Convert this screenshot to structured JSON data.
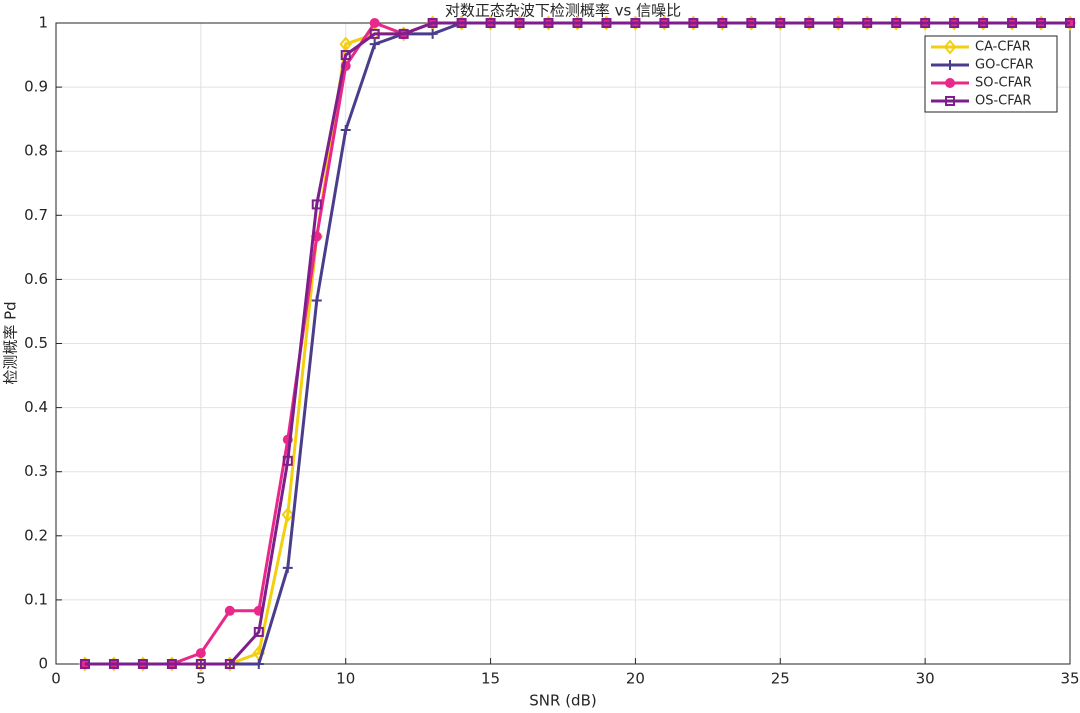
{
  "chart_data": {
    "type": "line",
    "title": "对数正态杂波下检测概率 vs 信噪比",
    "x_label": "SNR (dB)",
    "y_label": "检测概率 Pd",
    "x": [
      1,
      2,
      3,
      4,
      5,
      6,
      7,
      8,
      9,
      10,
      11,
      12,
      13,
      14,
      15,
      16,
      17,
      18,
      19,
      20,
      21,
      22,
      23,
      24,
      25,
      26,
      27,
      28,
      29,
      30,
      31,
      32,
      33,
      34,
      35
    ],
    "series": [
      {
        "name": "CA-CFAR",
        "color": "#f2cf0f",
        "marker": "diamond",
        "values": [
          0,
          0,
          0,
          0,
          0,
          0,
          0.017,
          0.233,
          0.667,
          0.967,
          0.983,
          0.983,
          1,
          1,
          1,
          1,
          1,
          1,
          1,
          1,
          1,
          1,
          1,
          1,
          1,
          1,
          1,
          1,
          1,
          1,
          1,
          1,
          1,
          1,
          1
        ]
      },
      {
        "name": "GO-CFAR",
        "color": "#4b3d8c",
        "marker": "plus",
        "values": [
          0,
          0,
          0,
          0,
          0,
          0,
          0,
          0.15,
          0.567,
          0.833,
          0.967,
          0.983,
          0.983,
          1,
          1,
          1,
          1,
          1,
          1,
          1,
          1,
          1,
          1,
          1,
          1,
          1,
          1,
          1,
          1,
          1,
          1,
          1,
          1,
          1,
          1
        ]
      },
      {
        "name": "SO-CFAR",
        "color": "#e8288a",
        "marker": "circle",
        "values": [
          0,
          0,
          0,
          0,
          0.017,
          0.083,
          0.083,
          0.35,
          0.667,
          0.933,
          1,
          0.983,
          1,
          1,
          1,
          1,
          1,
          1,
          1,
          1,
          1,
          1,
          1,
          1,
          1,
          1,
          1,
          1,
          1,
          1,
          1,
          1,
          1,
          1,
          1
        ]
      },
      {
        "name": "OS-CFAR",
        "color": "#7e1e8c",
        "marker": "square",
        "values": [
          0,
          0,
          0,
          0,
          0,
          0,
          0.05,
          0.317,
          0.717,
          0.95,
          0.983,
          0.983,
          1,
          1,
          1,
          1,
          1,
          1,
          1,
          1,
          1,
          1,
          1,
          1,
          1,
          1,
          1,
          1,
          1,
          1,
          1,
          1,
          1,
          1,
          1
        ]
      }
    ],
    "xlim": [
      0,
      35
    ],
    "xticks": [
      0,
      5,
      10,
      15,
      20,
      25,
      30,
      35
    ],
    "ylim": [
      0,
      1
    ],
    "yticks": [
      0,
      0.1,
      0.2,
      0.3,
      0.4,
      0.5,
      0.6,
      0.7,
      0.8,
      0.9,
      1
    ],
    "grid": true,
    "legend": "top-right"
  }
}
